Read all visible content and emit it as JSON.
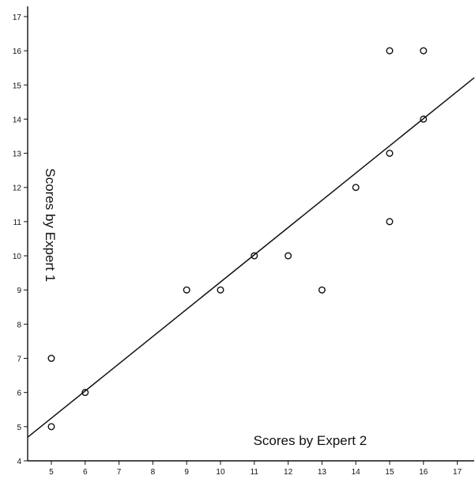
{
  "chart_data": {
    "type": "scatter",
    "title": "",
    "xlabel": "Scores by Expert 2",
    "ylabel": "Scores by Expert 1",
    "xlim": [
      4.3,
      17.5
    ],
    "ylim": [
      4,
      17.3
    ],
    "xticks": [
      5,
      6,
      7,
      8,
      9,
      10,
      11,
      12,
      13,
      14,
      15,
      16,
      17
    ],
    "yticks": [
      4,
      5,
      6,
      7,
      8,
      9,
      10,
      11,
      12,
      13,
      14,
      15,
      16,
      17
    ],
    "grid": false,
    "legend": "none",
    "points": [
      {
        "x": 5,
        "y": 5
      },
      {
        "x": 5,
        "y": 7
      },
      {
        "x": 6,
        "y": 6
      },
      {
        "x": 9,
        "y": 9
      },
      {
        "x": 10,
        "y": 9
      },
      {
        "x": 11,
        "y": 10
      },
      {
        "x": 12,
        "y": 10
      },
      {
        "x": 13,
        "y": 9
      },
      {
        "x": 14,
        "y": 12
      },
      {
        "x": 15,
        "y": 11
      },
      {
        "x": 15,
        "y": 13
      },
      {
        "x": 15,
        "y": 16
      },
      {
        "x": 16,
        "y": 14
      },
      {
        "x": 16,
        "y": 16
      }
    ],
    "fit_line": {
      "x": [
        4.3,
        17.5
      ],
      "y": [
        4.69,
        15.21
      ]
    },
    "colors": {
      "axis": "#111111",
      "marker": "#111111",
      "line": "#111111",
      "background": "#ffffff"
    }
  }
}
